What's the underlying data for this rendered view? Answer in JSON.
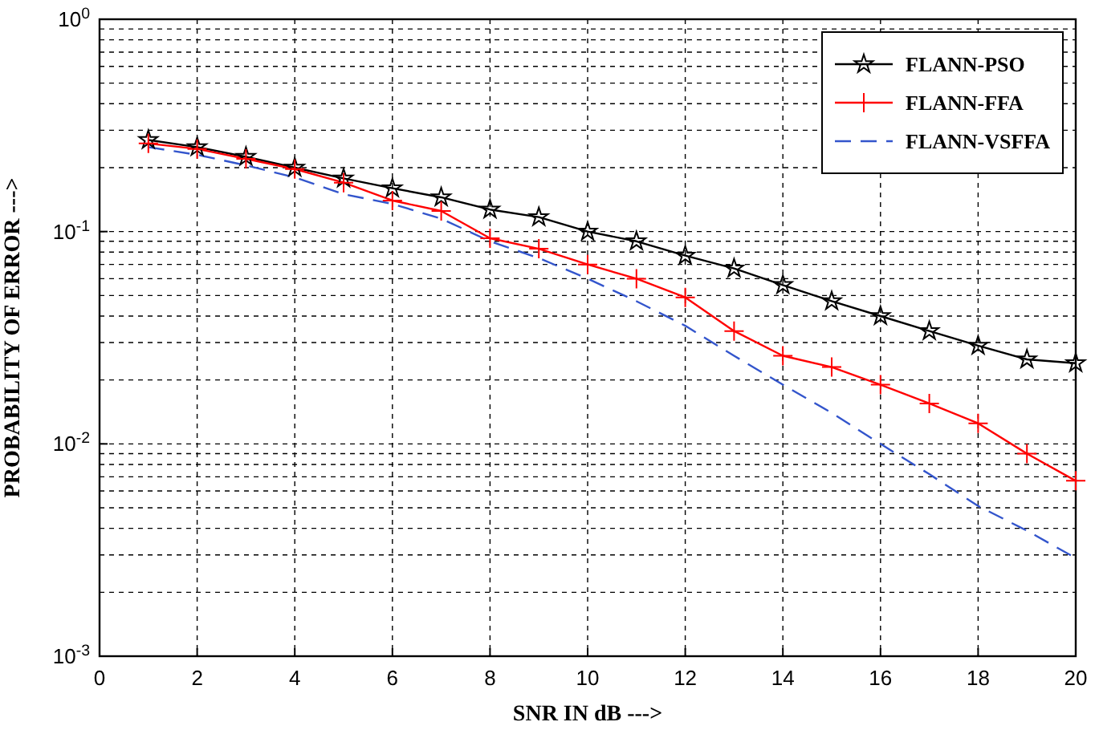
{
  "chart_data": {
    "type": "line",
    "xlabel": "SNR IN dB --->",
    "ylabel": "PROBABILITY OF ERROR --->",
    "log": "y",
    "grid": true,
    "legend": "top right",
    "x": [
      1,
      2,
      3,
      4,
      5,
      6,
      7,
      8,
      9,
      10,
      11,
      12,
      13,
      14,
      15,
      16,
      17,
      18,
      19,
      20
    ],
    "xlim": [
      0,
      20
    ],
    "xticks": [
      0,
      2,
      4,
      6,
      8,
      10,
      12,
      14,
      16,
      18,
      20
    ],
    "ylim": [
      0.001,
      1
    ],
    "yticks": [
      {
        "value": 0.001,
        "label": "10$^{-3}$"
      },
      {
        "value": 0.01,
        "label": "10$^{-2}$"
      },
      {
        "value": 0.1,
        "label": "10$^{-1}$"
      },
      {
        "value": 1,
        "label": "10$^{0}$"
      }
    ],
    "series": [
      {
        "name": "FLANN-PSO",
        "color": "#000000",
        "marker": "star",
        "line_style": "solid",
        "values": [
          0.27,
          0.25,
          0.225,
          0.2,
          0.178,
          0.16,
          0.145,
          0.127,
          0.117,
          0.1,
          0.09,
          0.077,
          0.067,
          0.056,
          0.047,
          0.04,
          0.034,
          0.029,
          0.025,
          0.024
        ]
      },
      {
        "name": "FLANN-FFA",
        "color": "#ff0000",
        "marker": "cross",
        "line_style": "solid",
        "values": [
          0.26,
          0.245,
          0.22,
          0.197,
          0.17,
          0.14,
          0.125,
          0.093,
          0.083,
          0.07,
          0.06,
          0.049,
          0.034,
          0.026,
          0.023,
          0.019,
          0.0155,
          0.0125,
          0.009,
          0.0067
        ]
      },
      {
        "name": "FLANN-VSFFA",
        "color": "#3355cc",
        "marker": "none",
        "line_style": "dashed",
        "values": [
          0.25,
          0.23,
          0.205,
          0.18,
          0.15,
          0.135,
          0.115,
          0.09,
          0.075,
          0.06,
          0.047,
          0.036,
          0.026,
          0.019,
          0.014,
          0.01,
          0.0072,
          0.0051,
          0.0039,
          0.0029
        ]
      }
    ]
  }
}
